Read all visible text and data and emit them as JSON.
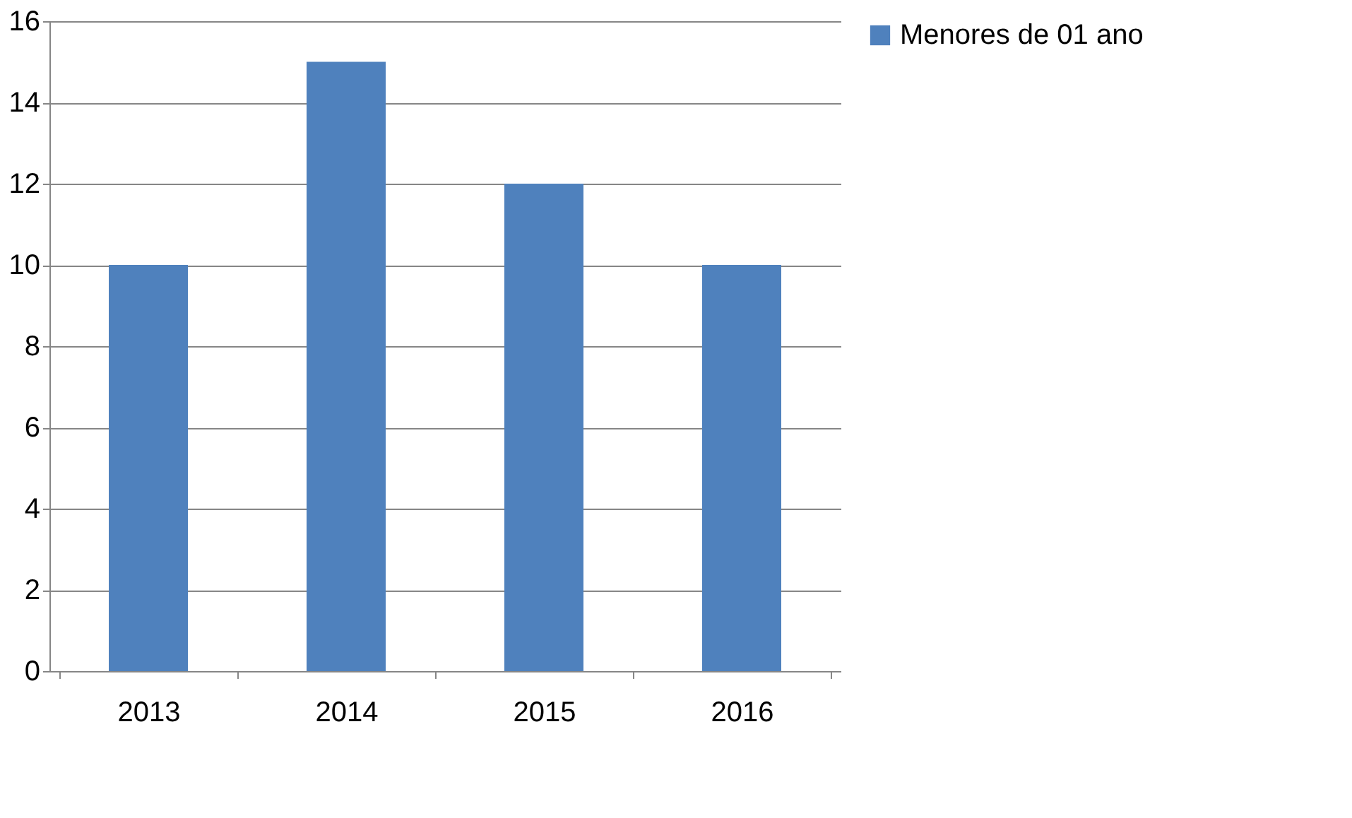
{
  "chart_data": {
    "type": "bar",
    "categories": [
      "2013",
      "2014",
      "2015",
      "2016"
    ],
    "series": [
      {
        "name": "Menores de 01 ano",
        "color": "#4f81bd",
        "values": [
          10,
          15,
          12,
          10
        ]
      }
    ],
    "ylim": [
      0,
      16
    ],
    "yticks": [
      0,
      2,
      4,
      6,
      8,
      10,
      12,
      14,
      16
    ],
    "grid": "y",
    "legend": "right"
  }
}
